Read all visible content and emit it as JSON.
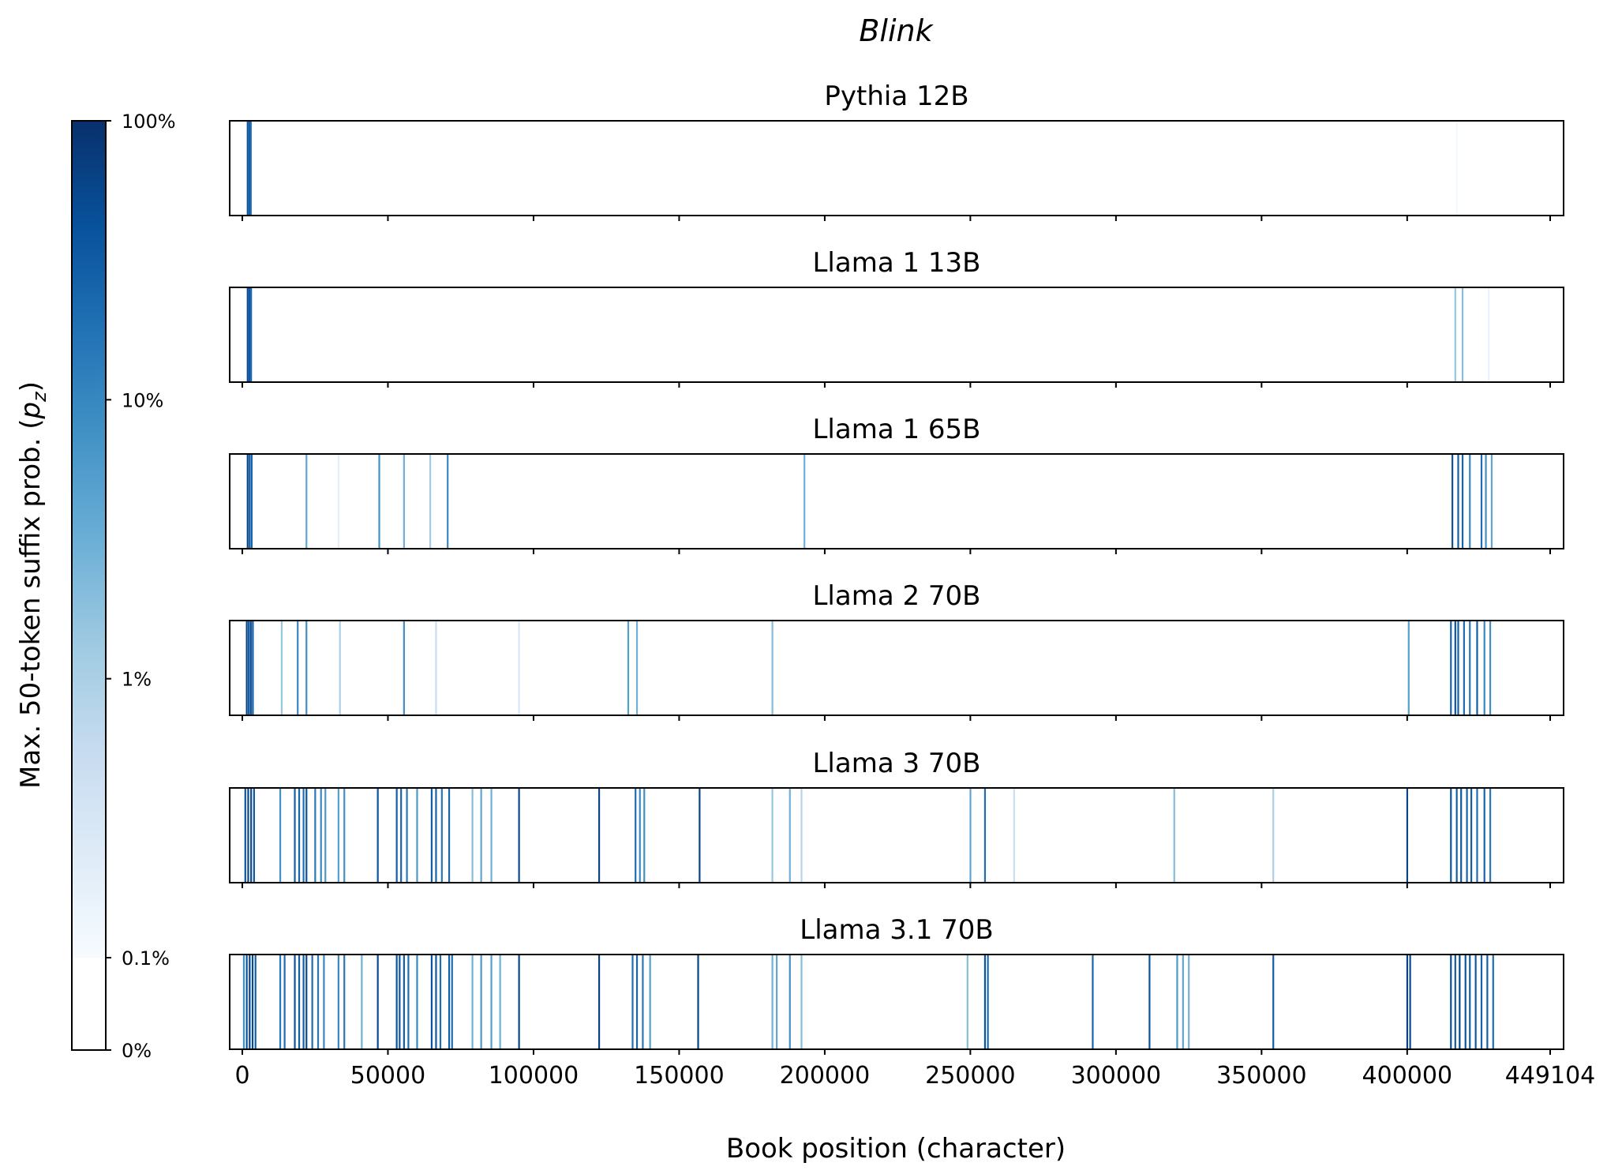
{
  "chart_data": {
    "type": "heatmap",
    "title": "Blink",
    "xlabel": "Book position (character)",
    "xlim": [
      0,
      449104
    ],
    "x_ticks": [
      0,
      50000,
      100000,
      150000,
      200000,
      250000,
      300000,
      350000,
      400000,
      449104
    ],
    "x_tick_labels": [
      "0",
      "50000",
      "100000",
      "150000",
      "200000",
      "250000",
      "300000",
      "350000",
      "400000",
      "449104"
    ],
    "colorbar": {
      "label": "Max. 50-token suffix prob. (p_z)",
      "label_main": "Max. 50-token suffix prob. (",
      "label_symbol": "p",
      "label_subscript": "z",
      "label_close": ")",
      "scale": "log above 0.1%",
      "ticks": [
        0,
        0.1,
        1,
        10,
        100
      ],
      "tick_labels": [
        "0%",
        "0.1%",
        "1%",
        "10%",
        "100%"
      ],
      "colormap": "Blues"
    },
    "value_unit": "percent",
    "panels": [
      {
        "name": "Pythia 12B",
        "stripes": [
          [
            1800,
            40
          ],
          [
            2400,
            30
          ],
          [
            2900,
            20
          ],
          [
            417000,
            0.12
          ]
        ]
      },
      {
        "name": "Llama 1 13B",
        "stripes": [
          [
            1800,
            50
          ],
          [
            2400,
            35
          ],
          [
            3000,
            25
          ],
          [
            416500,
            1.5
          ],
          [
            419000,
            2
          ],
          [
            428000,
            0.15
          ]
        ]
      },
      {
        "name": "Llama 1 65B",
        "stripes": [
          [
            1800,
            60
          ],
          [
            2500,
            40
          ],
          [
            3200,
            25
          ],
          [
            22000,
            4
          ],
          [
            33000,
            0.2
          ],
          [
            47000,
            8
          ],
          [
            55500,
            3
          ],
          [
            64500,
            1.2
          ],
          [
            70500,
            10
          ],
          [
            193000,
            3
          ],
          [
            415500,
            40
          ],
          [
            417500,
            30
          ],
          [
            419000,
            25
          ],
          [
            421500,
            10
          ],
          [
            425500,
            20
          ],
          [
            427000,
            8
          ],
          [
            429000,
            4
          ]
        ]
      },
      {
        "name": "Llama 2 70B",
        "stripes": [
          [
            1500,
            60
          ],
          [
            2200,
            40
          ],
          [
            2900,
            50
          ],
          [
            3600,
            30
          ],
          [
            13500,
            1.5
          ],
          [
            19000,
            10
          ],
          [
            22000,
            8
          ],
          [
            33500,
            1
          ],
          [
            55500,
            8
          ],
          [
            66500,
            0.5
          ],
          [
            95000,
            0.3
          ],
          [
            132500,
            5
          ],
          [
            135500,
            3
          ],
          [
            182000,
            2
          ],
          [
            400500,
            5
          ],
          [
            415000,
            25
          ],
          [
            416500,
            40
          ],
          [
            417500,
            30
          ],
          [
            419500,
            20
          ],
          [
            421500,
            15
          ],
          [
            424000,
            30
          ],
          [
            426500,
            10
          ],
          [
            428500,
            8
          ]
        ]
      },
      {
        "name": "Llama 3 70B",
        "stripes": [
          [
            1000,
            40
          ],
          [
            2000,
            60
          ],
          [
            3000,
            50
          ],
          [
            4000,
            35
          ],
          [
            13000,
            8
          ],
          [
            18000,
            30
          ],
          [
            19500,
            25
          ],
          [
            21000,
            20
          ],
          [
            22000,
            40
          ],
          [
            25000,
            15
          ],
          [
            27000,
            10
          ],
          [
            28500,
            6
          ],
          [
            33000,
            5
          ],
          [
            35000,
            8
          ],
          [
            46500,
            40
          ],
          [
            53000,
            30
          ],
          [
            54500,
            25
          ],
          [
            56500,
            15
          ],
          [
            60000,
            6
          ],
          [
            65000,
            30
          ],
          [
            66500,
            25
          ],
          [
            68500,
            15
          ],
          [
            71000,
            25
          ],
          [
            79000,
            2
          ],
          [
            82000,
            4
          ],
          [
            85500,
            3
          ],
          [
            95000,
            50
          ],
          [
            122500,
            60
          ],
          [
            135000,
            20
          ],
          [
            136500,
            10
          ],
          [
            138000,
            8
          ],
          [
            157000,
            60
          ],
          [
            182000,
            1.5
          ],
          [
            188000,
            3
          ],
          [
            192000,
            0.8
          ],
          [
            250000,
            4
          ],
          [
            255000,
            20
          ],
          [
            265000,
            0.5
          ],
          [
            320000,
            2
          ],
          [
            354000,
            1
          ],
          [
            400000,
            60
          ],
          [
            415000,
            40
          ],
          [
            417000,
            30
          ],
          [
            418500,
            35
          ],
          [
            420500,
            25
          ],
          [
            422000,
            30
          ],
          [
            424000,
            20
          ],
          [
            426500,
            25
          ],
          [
            428500,
            15
          ]
        ]
      },
      {
        "name": "Llama 3.1 70B",
        "stripes": [
          [
            500,
            8
          ],
          [
            1500,
            40
          ],
          [
            2500,
            60
          ],
          [
            3500,
            50
          ],
          [
            4500,
            30
          ],
          [
            13000,
            15
          ],
          [
            14500,
            20
          ],
          [
            18000,
            40
          ],
          [
            19500,
            30
          ],
          [
            21000,
            30
          ],
          [
            22000,
            50
          ],
          [
            24000,
            20
          ],
          [
            26000,
            15
          ],
          [
            28000,
            10
          ],
          [
            33000,
            10
          ],
          [
            35000,
            15
          ],
          [
            41000,
            3
          ],
          [
            46500,
            50
          ],
          [
            53000,
            40
          ],
          [
            54000,
            35
          ],
          [
            55500,
            30
          ],
          [
            57000,
            20
          ],
          [
            60000,
            10
          ],
          [
            65000,
            40
          ],
          [
            66500,
            35
          ],
          [
            68000,
            20
          ],
          [
            71000,
            30
          ],
          [
            72000,
            20
          ],
          [
            79000,
            3
          ],
          [
            82000,
            6
          ],
          [
            85500,
            5
          ],
          [
            88500,
            3
          ],
          [
            95000,
            55
          ],
          [
            122500,
            65
          ],
          [
            134000,
            20
          ],
          [
            135500,
            25
          ],
          [
            137500,
            15
          ],
          [
            140000,
            5
          ],
          [
            156500,
            60
          ],
          [
            182000,
            3
          ],
          [
            183500,
            4
          ],
          [
            188000,
            8
          ],
          [
            192000,
            2
          ],
          [
            249000,
            2
          ],
          [
            255000,
            40
          ],
          [
            256000,
            20
          ],
          [
            292000,
            25
          ],
          [
            311500,
            40
          ],
          [
            321000,
            6
          ],
          [
            323000,
            4
          ],
          [
            325000,
            3
          ],
          [
            354000,
            30
          ],
          [
            400000,
            65
          ],
          [
            401000,
            50
          ],
          [
            415000,
            45
          ],
          [
            416500,
            35
          ],
          [
            418000,
            50
          ],
          [
            420000,
            40
          ],
          [
            421500,
            30
          ],
          [
            423500,
            35
          ],
          [
            425500,
            25
          ],
          [
            427500,
            30
          ],
          [
            429500,
            20
          ]
        ]
      }
    ]
  }
}
